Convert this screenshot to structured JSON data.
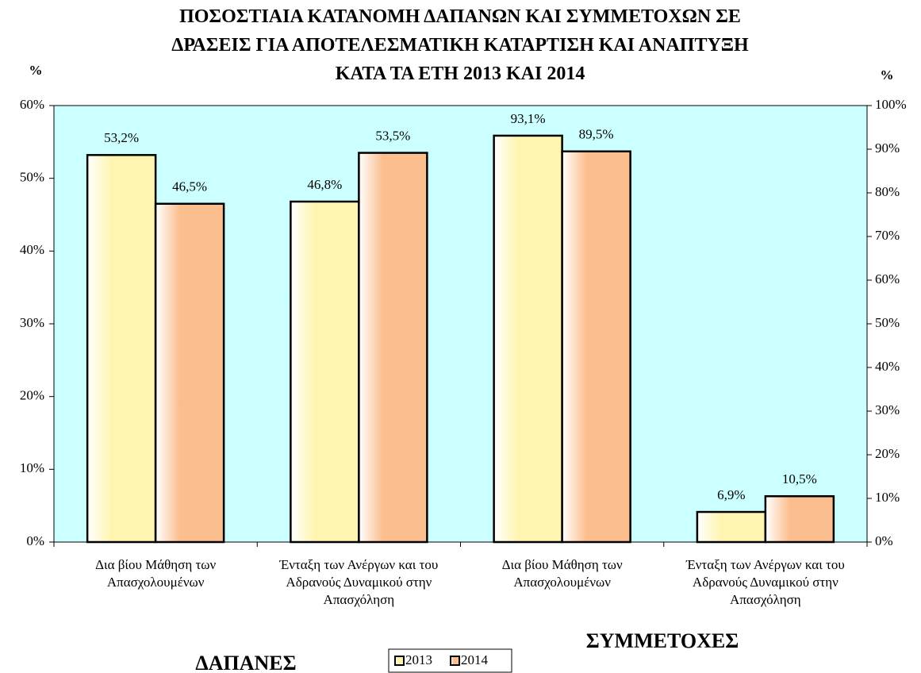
{
  "chart_data": [
    {
      "type": "bar",
      "title": "ΠΟΣΟΣΤΙΑΙΑ ΚΑΤΑΝΟΜΗ ΔΑΠΑΝΩΝ ΚΑΙ ΣΥΜΜΕΤΟΧΩΝ ΣΕ\nΔΡΑΣΕΙΣ ΓΙΑ ΑΠΟΤΕΛΕΣΜΑΤΙΚΗ ΚΑΤΑΡΤΙΣΗ ΚΑΙ ΑΝΑΠΤΥΞΗ\nΚΑΤΑ ΤΑ ΕΤΗ 2013 ΚΑΙ 2014",
      "y_label": "%",
      "group_label": "ΔΑΠΑΝΕΣ",
      "categories": [
        "Δια βίου Μάθηση των\nΑπασχολουμένων",
        "Ένταξη των Ανέργων και του\nΑδρανούς Δυναμικού στην\nΑπασχόληση"
      ],
      "series": [
        {
          "name": "2013",
          "color": "#fff5b0",
          "values": [
            53.2,
            46.8
          ],
          "value_labels": [
            "53,2%",
            "46,8%"
          ]
        },
        {
          "name": "2014",
          "color": "#fbbf8f",
          "values": [
            46.5,
            53.5
          ],
          "value_labels": [
            "46,5%",
            "53,5%"
          ]
        }
      ],
      "ylim": [
        0,
        60
      ],
      "yticks": [
        {
          "value": 0,
          "label": "0%"
        },
        {
          "value": 10,
          "label": "10%"
        },
        {
          "value": 20,
          "label": "20%"
        },
        {
          "value": 30,
          "label": "30%"
        },
        {
          "value": 40,
          "label": "40%"
        },
        {
          "value": 50,
          "label": "50%"
        },
        {
          "value": 60,
          "label": "60%"
        }
      ],
      "legend": "bottom"
    },
    {
      "type": "bar",
      "y2_label": "%",
      "group_label": "ΣΥΜΜΕΤΟΧΕΣ",
      "categories": [
        "Δια βίου Μάθηση των\nΑπασχολουμένων",
        "Ένταξη των Ανέργων και του\nΑδρανούς Δυναμικού στην\nΑπασχόληση"
      ],
      "series": [
        {
          "color": "#fff5b0",
          "values": [
            93.1,
            6.9
          ],
          "value_labels": [
            "93,1%",
            "6,9%"
          ],
          "axis": "y2"
        },
        {
          "color": "#fbbf8f",
          "values": [
            89.5,
            10.5
          ],
          "value_labels": [
            "89,5%",
            "10,5%"
          ],
          "axis": "y2"
        }
      ],
      "y2lim": [
        0,
        100
      ],
      "y2ticks": [
        {
          "value": 0,
          "label": "0%"
        },
        {
          "value": 10,
          "label": "10%"
        },
        {
          "value": 20,
          "label": "20%"
        },
        {
          "value": 30,
          "label": "30%"
        },
        {
          "value": 40,
          "label": "40%"
        },
        {
          "value": 50,
          "label": "50%"
        },
        {
          "value": 60,
          "label": "60%"
        },
        {
          "value": 70,
          "label": "70%"
        },
        {
          "value": 80,
          "label": "80%"
        },
        {
          "value": 90,
          "label": "90%"
        },
        {
          "value": 100,
          "label": "100%"
        }
      ]
    }
  ]
}
